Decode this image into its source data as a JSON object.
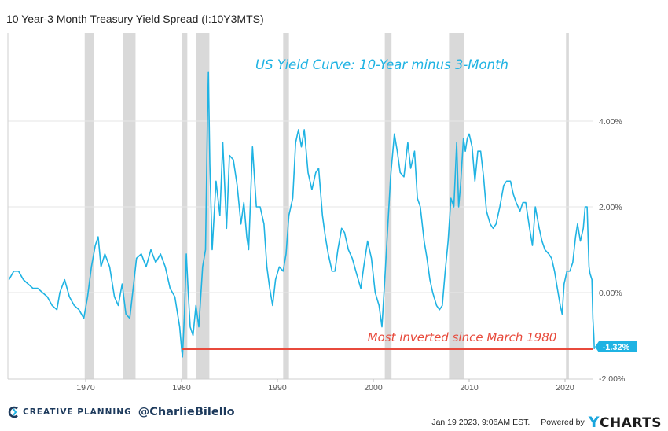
{
  "title": "10 Year-3 Month Treasury Yield Spread (I:10Y3MTS)",
  "chart_data": {
    "type": "line",
    "title": "US Yield Curve: 10-Year minus 3-Month",
    "annotation": "Most inverted since March 1980",
    "last_value_label": "-1.32%",
    "last_value": -1.32,
    "x_ticks": [
      "1970",
      "1980",
      "1990",
      "2000",
      "2010",
      "2020"
    ],
    "y_ticks": [
      "4.00%",
      "2.00%",
      "0.00%",
      "-2.00%"
    ],
    "ylim": [
      -2.0,
      5.3
    ],
    "xlim": [
      1962.0,
      2023.1
    ],
    "grid": true,
    "line_color": "#1fb3e3",
    "annotation_color": "#e84a3c",
    "recession_color": "#d9d9d9",
    "recessions": [
      [
        1969.9,
        1970.9
      ],
      [
        1973.9,
        1975.2
      ],
      [
        1980.0,
        1980.6
      ],
      [
        1981.5,
        1982.9
      ],
      [
        1990.6,
        1991.2
      ],
      [
        2001.2,
        2001.9
      ],
      [
        2007.9,
        2009.5
      ],
      [
        2020.1,
        2020.4
      ]
    ],
    "series": [
      {
        "values": [
          [
            1962.0,
            0.3
          ],
          [
            1962.5,
            0.5
          ],
          [
            1963.0,
            0.5
          ],
          [
            1963.5,
            0.3
          ],
          [
            1964.0,
            0.2
          ],
          [
            1964.5,
            0.1
          ],
          [
            1965.0,
            0.1
          ],
          [
            1965.5,
            0.0
          ],
          [
            1966.0,
            -0.1
          ],
          [
            1966.5,
            -0.3
          ],
          [
            1967.0,
            -0.4
          ],
          [
            1967.3,
            0.0
          ],
          [
            1967.8,
            0.3
          ],
          [
            1968.3,
            -0.1
          ],
          [
            1968.8,
            -0.3
          ],
          [
            1969.3,
            -0.4
          ],
          [
            1969.8,
            -0.6
          ],
          [
            1970.2,
            -0.1
          ],
          [
            1970.6,
            0.6
          ],
          [
            1971.0,
            1.1
          ],
          [
            1971.3,
            1.3
          ],
          [
            1971.6,
            0.6
          ],
          [
            1972.0,
            0.9
          ],
          [
            1972.5,
            0.6
          ],
          [
            1973.0,
            -0.1
          ],
          [
            1973.4,
            -0.3
          ],
          [
            1973.8,
            0.2
          ],
          [
            1974.2,
            -0.5
          ],
          [
            1974.6,
            -0.6
          ],
          [
            1974.9,
            0.0
          ],
          [
            1975.3,
            0.8
          ],
          [
            1975.8,
            0.9
          ],
          [
            1976.3,
            0.6
          ],
          [
            1976.8,
            1.0
          ],
          [
            1977.3,
            0.7
          ],
          [
            1977.8,
            0.9
          ],
          [
            1978.3,
            0.6
          ],
          [
            1978.8,
            0.1
          ],
          [
            1979.3,
            -0.1
          ],
          [
            1979.8,
            -0.8
          ],
          [
            1980.0,
            -1.3
          ],
          [
            1980.1,
            -1.5
          ],
          [
            1980.3,
            -0.5
          ],
          [
            1980.5,
            0.9
          ],
          [
            1980.7,
            0.0
          ],
          [
            1980.9,
            -0.8
          ],
          [
            1981.2,
            -1.0
          ],
          [
            1981.5,
            -0.3
          ],
          [
            1981.8,
            -0.8
          ],
          [
            1982.2,
            0.6
          ],
          [
            1982.5,
            1.0
          ],
          [
            1982.7,
            4.0
          ],
          [
            1982.8,
            5.15
          ],
          [
            1982.95,
            3.0
          ],
          [
            1983.2,
            1.0
          ],
          [
            1983.6,
            2.6
          ],
          [
            1984.0,
            1.8
          ],
          [
            1984.3,
            3.5
          ],
          [
            1984.7,
            1.5
          ],
          [
            1985.0,
            3.2
          ],
          [
            1985.4,
            3.1
          ],
          [
            1985.8,
            2.5
          ],
          [
            1986.2,
            1.6
          ],
          [
            1986.5,
            2.1
          ],
          [
            1986.8,
            1.3
          ],
          [
            1987.0,
            1.0
          ],
          [
            1987.4,
            3.4
          ],
          [
            1987.8,
            2.0
          ],
          [
            1988.2,
            2.0
          ],
          [
            1988.6,
            1.6
          ],
          [
            1988.9,
            0.6
          ],
          [
            1989.2,
            0.1
          ],
          [
            1989.5,
            -0.3
          ],
          [
            1989.8,
            0.3
          ],
          [
            1990.2,
            0.6
          ],
          [
            1990.6,
            0.5
          ],
          [
            1990.9,
            0.9
          ],
          [
            1991.2,
            1.8
          ],
          [
            1991.6,
            2.2
          ],
          [
            1991.9,
            3.5
          ],
          [
            1992.2,
            3.8
          ],
          [
            1992.5,
            3.4
          ],
          [
            1992.8,
            3.8
          ],
          [
            1993.2,
            2.8
          ],
          [
            1993.6,
            2.4
          ],
          [
            1994.0,
            2.8
          ],
          [
            1994.3,
            2.9
          ],
          [
            1994.7,
            1.8
          ],
          [
            1995.0,
            1.3
          ],
          [
            1995.3,
            0.9
          ],
          [
            1995.7,
            0.5
          ],
          [
            1996.0,
            0.5
          ],
          [
            1996.3,
            1.0
          ],
          [
            1996.7,
            1.5
          ],
          [
            1997.0,
            1.4
          ],
          [
            1997.4,
            1.0
          ],
          [
            1997.8,
            0.8
          ],
          [
            1998.3,
            0.4
          ],
          [
            1998.7,
            0.1
          ],
          [
            1999.0,
            0.6
          ],
          [
            1999.4,
            1.2
          ],
          [
            1999.8,
            0.8
          ],
          [
            2000.2,
            0.0
          ],
          [
            2000.6,
            -0.3
          ],
          [
            2000.9,
            -0.8
          ],
          [
            2001.2,
            0.3
          ],
          [
            2001.5,
            1.5
          ],
          [
            2001.8,
            2.7
          ],
          [
            2002.2,
            3.7
          ],
          [
            2002.5,
            3.3
          ],
          [
            2002.8,
            2.8
          ],
          [
            2003.2,
            2.7
          ],
          [
            2003.6,
            3.5
          ],
          [
            2003.9,
            2.9
          ],
          [
            2004.3,
            3.3
          ],
          [
            2004.6,
            2.2
          ],
          [
            2004.9,
            2.0
          ],
          [
            2005.3,
            1.2
          ],
          [
            2005.6,
            0.8
          ],
          [
            2005.9,
            0.3
          ],
          [
            2006.2,
            0.0
          ],
          [
            2006.6,
            -0.3
          ],
          [
            2006.9,
            -0.4
          ],
          [
            2007.2,
            -0.3
          ],
          [
            2007.5,
            0.5
          ],
          [
            2007.8,
            1.2
          ],
          [
            2008.1,
            2.2
          ],
          [
            2008.4,
            2.0
          ],
          [
            2008.7,
            3.5
          ],
          [
            2008.9,
            2.0
          ],
          [
            2009.1,
            2.5
          ],
          [
            2009.4,
            3.6
          ],
          [
            2009.6,
            3.3
          ],
          [
            2009.8,
            3.6
          ],
          [
            2010.0,
            3.7
          ],
          [
            2010.3,
            3.4
          ],
          [
            2010.6,
            2.6
          ],
          [
            2010.9,
            3.3
          ],
          [
            2011.2,
            3.3
          ],
          [
            2011.5,
            2.7
          ],
          [
            2011.8,
            1.9
          ],
          [
            2012.2,
            1.6
          ],
          [
            2012.5,
            1.5
          ],
          [
            2012.8,
            1.6
          ],
          [
            2013.2,
            2.0
          ],
          [
            2013.6,
            2.5
          ],
          [
            2013.9,
            2.6
          ],
          [
            2014.3,
            2.6
          ],
          [
            2014.6,
            2.3
          ],
          [
            2014.9,
            2.1
          ],
          [
            2015.3,
            1.9
          ],
          [
            2015.6,
            2.1
          ],
          [
            2015.9,
            2.1
          ],
          [
            2016.3,
            1.5
          ],
          [
            2016.6,
            1.1
          ],
          [
            2016.9,
            2.0
          ],
          [
            2017.3,
            1.5
          ],
          [
            2017.6,
            1.2
          ],
          [
            2017.9,
            1.0
          ],
          [
            2018.3,
            0.9
          ],
          [
            2018.6,
            0.8
          ],
          [
            2018.9,
            0.5
          ],
          [
            2019.2,
            0.1
          ],
          [
            2019.5,
            -0.3
          ],
          [
            2019.7,
            -0.5
          ],
          [
            2019.9,
            0.2
          ],
          [
            2020.2,
            0.5
          ],
          [
            2020.5,
            0.5
          ],
          [
            2020.8,
            0.7
          ],
          [
            2021.1,
            1.3
          ],
          [
            2021.3,
            1.6
          ],
          [
            2021.6,
            1.2
          ],
          [
            2021.9,
            1.5
          ],
          [
            2022.1,
            2.0
          ],
          [
            2022.3,
            2.0
          ],
          [
            2022.5,
            0.6
          ],
          [
            2022.6,
            0.45
          ],
          [
            2022.8,
            0.3
          ],
          [
            2022.9,
            -0.6
          ],
          [
            2023.0,
            -1.0
          ],
          [
            2023.05,
            -1.32
          ]
        ]
      }
    ]
  },
  "footer": {
    "brand": "CREATIVE PLANNING",
    "handle": "@CharlieBilello",
    "timestamp": "Jan 19 2023, 9:06AM EST.",
    "powered_by": "Powered by",
    "ycharts_y": "Y",
    "ycharts_rest": "CHARTS"
  }
}
